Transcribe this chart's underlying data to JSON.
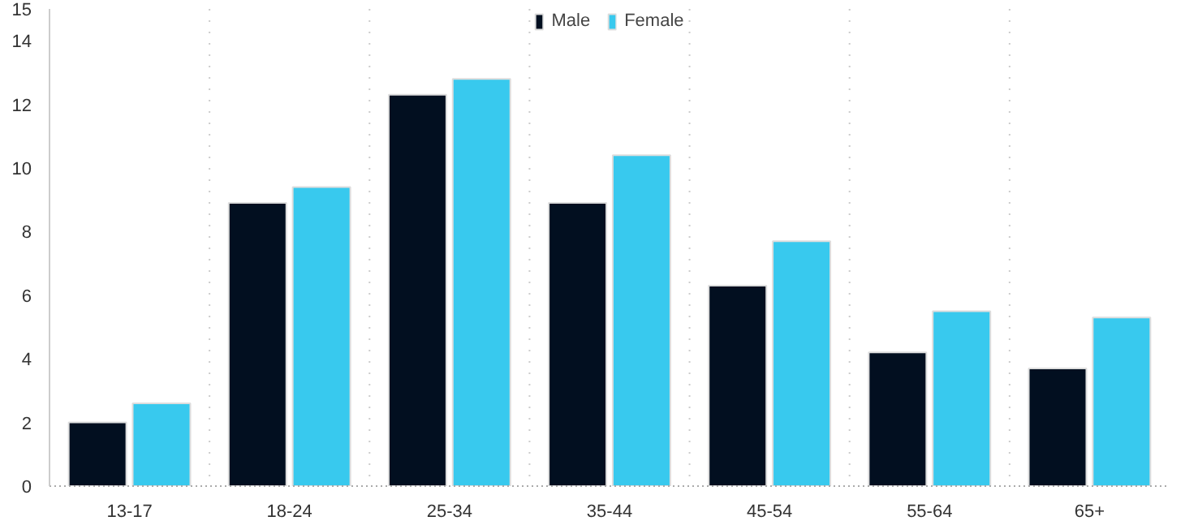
{
  "chart_data": {
    "type": "bar",
    "categories": [
      "13-17",
      "18-24",
      "25-34",
      "35-44",
      "45-54",
      "55-64",
      "65+"
    ],
    "series": [
      {
        "name": "Male",
        "color": "#020f20",
        "values": [
          2.0,
          8.9,
          12.3,
          8.9,
          6.3,
          4.2,
          3.7
        ]
      },
      {
        "name": "Female",
        "color": "#38c9ee",
        "values": [
          2.6,
          9.4,
          12.8,
          10.4,
          7.7,
          5.5,
          5.3
        ]
      }
    ],
    "ylim": [
      0,
      15
    ],
    "yticks": [
      0,
      2,
      4,
      6,
      8,
      10,
      12,
      14,
      15
    ],
    "grid": "x",
    "legend": "top"
  }
}
